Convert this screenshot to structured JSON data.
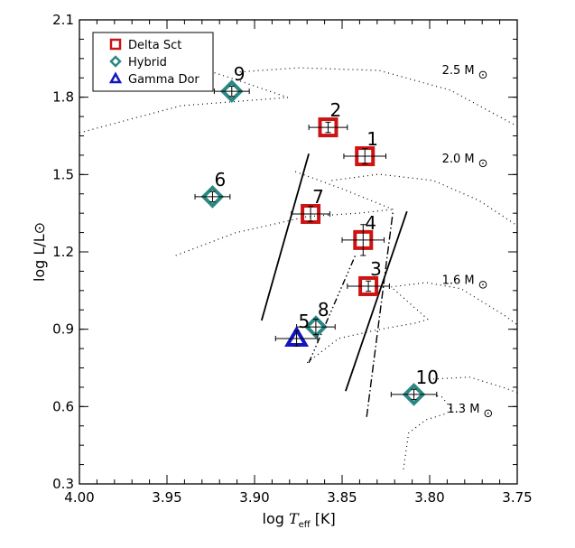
{
  "chart_data": {
    "type": "scatter",
    "title": "",
    "xlabel": "log T_eff [K]",
    "xlabel_parts": {
      "pre": "log ",
      "var": "T",
      "sub": "eff",
      "post": " [K]"
    },
    "ylabel": "log L/L⊙",
    "ylabel_parts": {
      "pre": "log ",
      "var": "L/L",
      "sub": "⊙"
    },
    "xlim": [
      4.0,
      3.75
    ],
    "ylim": [
      0.3,
      2.1
    ],
    "xticks": [
      "4.00",
      "3.95",
      "3.90",
      "3.85",
      "3.80",
      "3.75"
    ],
    "xtick_values": [
      4.0,
      3.95,
      3.9,
      3.85,
      3.8,
      3.75
    ],
    "yticks": [
      "0.3",
      "0.6",
      "0.9",
      "1.2",
      "1.5",
      "1.8",
      "2.1"
    ],
    "ytick_values": [
      0.3,
      0.6,
      0.9,
      1.2,
      1.5,
      1.8,
      2.1
    ],
    "x_minor_step": 0.01,
    "y_minor_step": 0.075,
    "legend": {
      "placement": "top-left",
      "entries": [
        {
          "label": "Delta Sct",
          "marker": "square",
          "color": "#cc1414"
        },
        {
          "label": "Hybrid",
          "marker": "diamond",
          "color": "#2a8883"
        },
        {
          "label": "Gamma Dor",
          "marker": "triangle",
          "color": "#1414c0"
        }
      ]
    },
    "series": [
      {
        "name": "Delta Sct",
        "marker": "square",
        "color": "#cc1414",
        "points": [
          {
            "id": "1",
            "x": 3.837,
            "y": 1.571,
            "xerr": 0.012,
            "yerr": 0.03
          },
          {
            "id": "2",
            "x": 3.858,
            "y": 1.683,
            "xerr": 0.011,
            "yerr": 0.02
          },
          {
            "id": "3",
            "x": 3.835,
            "y": 1.067,
            "xerr": 0.012,
            "yerr": 0.02
          },
          {
            "id": "4",
            "x": 3.838,
            "y": 1.246,
            "xerr": 0.012,
            "yerr": 0.06
          },
          {
            "id": "7",
            "x": 3.868,
            "y": 1.347,
            "xerr": 0.011,
            "yerr": 0.03
          }
        ]
      },
      {
        "name": "Hybrid",
        "marker": "diamond",
        "color": "#2a8883",
        "points": [
          {
            "id": "6",
            "x": 3.924,
            "y": 1.414,
            "xerr": 0.01,
            "yerr": 0.02
          },
          {
            "id": "8",
            "x": 3.865,
            "y": 0.909,
            "xerr": 0.011,
            "yerr": 0.03
          },
          {
            "id": "9",
            "x": 3.913,
            "y": 1.823,
            "xerr": 0.01,
            "yerr": 0.02
          },
          {
            "id": "10",
            "x": 3.809,
            "y": 0.647,
            "xerr": 0.013,
            "yerr": 0.02
          }
        ]
      },
      {
        "name": "Gamma Dor",
        "marker": "triangle",
        "color": "#1414c0",
        "points": [
          {
            "id": "5",
            "x": 3.876,
            "y": 0.864,
            "xerr": 0.012,
            "yerr": 0.03
          }
        ]
      }
    ],
    "boundaries": [
      {
        "name": "solid-blue-edge",
        "style": "solid",
        "points": [
          [
            3.896,
            0.934
          ],
          [
            3.869,
            1.581
          ]
        ]
      },
      {
        "name": "solid-red-edge",
        "style": "solid",
        "points": [
          [
            3.848,
            0.66
          ],
          [
            3.813,
            1.357
          ]
        ]
      },
      {
        "name": "dash-triple-dot-edge",
        "style": "dash3dot",
        "points": [
          [
            3.869,
            0.77
          ],
          [
            3.842,
            1.193
          ]
        ]
      },
      {
        "name": "dash-dot-edge",
        "style": "dashdot",
        "points": [
          [
            3.836,
            0.56
          ],
          [
            3.821,
            1.355
          ]
        ]
      }
    ],
    "tracks": [
      {
        "mass_label": "2.5 M",
        "label_pos": [
          3.793,
          1.89
        ],
        "segments": [
          [
            [
              4.0,
              1.662
            ],
            [
              3.942,
              1.767
            ],
            [
              3.881,
              1.799
            ],
            [
              3.911,
              1.869
            ],
            [
              3.94,
              1.932
            ]
          ],
          [
            [
              3.911,
              1.897
            ],
            [
              3.875,
              1.914
            ],
            [
              3.829,
              1.904
            ],
            [
              3.788,
              1.827
            ],
            [
              3.75,
              1.687
            ]
          ]
        ]
      },
      {
        "mass_label": "2.0 M",
        "label_pos": [
          3.793,
          1.547
        ],
        "segments": [
          [
            [
              3.945,
              1.186
            ],
            [
              3.911,
              1.274
            ],
            [
              3.87,
              1.337
            ],
            [
              3.839,
              1.351
            ],
            [
              3.821,
              1.365
            ]
          ],
          [
            [
              3.821,
              1.365
            ],
            [
              3.849,
              1.442
            ],
            [
              3.877,
              1.512
            ]
          ],
          [
            [
              3.856,
              1.477
            ],
            [
              3.829,
              1.501
            ],
            [
              3.798,
              1.477
            ],
            [
              3.772,
              1.4
            ],
            [
              3.75,
              1.302
            ]
          ]
        ]
      },
      {
        "mass_label": "1.6 M",
        "label_pos": [
          3.793,
          1.075
        ],
        "segments": [
          [
            [
              3.87,
              0.77
            ],
            [
              3.852,
              0.864
            ],
            [
              3.829,
              0.899
            ],
            [
              3.808,
              0.924
            ],
            [
              3.801,
              0.938
            ]
          ],
          [
            [
              3.801,
              0.938
            ],
            [
              3.822,
              1.064
            ]
          ],
          [
            [
              3.822,
              1.064
            ],
            [
              3.802,
              1.081
            ],
            [
              3.782,
              1.057
            ],
            [
              3.757,
              0.952
            ],
            [
              3.75,
              0.917
            ]
          ]
        ]
      },
      {
        "mass_label": "1.3 M",
        "label_pos": [
          3.79,
          0.577
        ],
        "segments": [
          [
            [
              3.815,
              0.357
            ],
            [
              3.812,
              0.497
            ],
            [
              3.802,
              0.549
            ],
            [
              3.79,
              0.574
            ],
            [
              3.788,
              0.595
            ]
          ],
          [
            [
              3.788,
              0.595
            ],
            [
              3.793,
              0.637
            ],
            [
              3.798,
              0.647
            ]
          ],
          [
            [
              3.798,
              0.707
            ],
            [
              3.777,
              0.714
            ],
            [
              3.757,
              0.672
            ],
            [
              3.75,
              0.654
            ]
          ]
        ]
      }
    ],
    "sun_symbol": "⊙"
  }
}
